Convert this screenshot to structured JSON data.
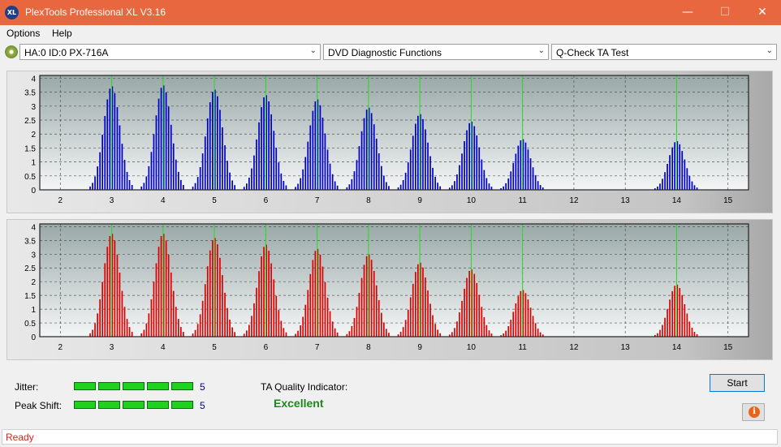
{
  "window": {
    "app_icon_text": "XL",
    "title": "PlexTools Professional XL V3.16",
    "minimize_icon": "minimize-icon",
    "maximize_icon": "maximize-icon",
    "close_icon": "close-icon"
  },
  "menu": {
    "items": [
      "Options",
      "Help"
    ]
  },
  "toolbar": {
    "drive": "HA:0 ID:0  PX-716A",
    "function": "DVD Diagnostic Functions",
    "test": "Q-Check TA Test"
  },
  "charts": {
    "x_ticks": [
      "2",
      "3",
      "4",
      "5",
      "6",
      "7",
      "8",
      "9",
      "10",
      "11",
      "12",
      "13",
      "14",
      "15"
    ],
    "y_ticks": [
      "0",
      "0.5",
      "1",
      "1.5",
      "2",
      "2.5",
      "3",
      "3.5",
      "4"
    ]
  },
  "chart_data": [
    {
      "type": "bar",
      "name": "top",
      "color": "#0000cc",
      "xlim": [
        1.6,
        15.4
      ],
      "ylim": [
        0,
        4.1
      ],
      "x_ticks": [
        2,
        3,
        4,
        5,
        6,
        7,
        8,
        9,
        10,
        11,
        12,
        13,
        14,
        15
      ],
      "y_ticks": [
        0,
        0.5,
        1,
        1.5,
        2,
        2.5,
        3,
        3.5,
        4
      ],
      "green_markers": [
        3,
        4,
        5,
        6,
        7,
        8,
        9,
        10,
        11,
        14
      ],
      "peaks": [
        {
          "center": 3,
          "height": 3.72
        },
        {
          "center": 4,
          "height": 3.75
        },
        {
          "center": 5,
          "height": 3.6
        },
        {
          "center": 6,
          "height": 3.4
        },
        {
          "center": 7,
          "height": 3.25
        },
        {
          "center": 8,
          "height": 2.95
        },
        {
          "center": 9,
          "height": 2.72
        },
        {
          "center": 10,
          "height": 2.45
        },
        {
          "center": 11,
          "height": 1.82
        },
        {
          "center": 14,
          "height": 1.75
        }
      ]
    },
    {
      "type": "bar",
      "name": "bottom",
      "color": "#dd0000",
      "xlim": [
        1.6,
        15.4
      ],
      "ylim": [
        0,
        4.1
      ],
      "x_ticks": [
        2,
        3,
        4,
        5,
        6,
        7,
        8,
        9,
        10,
        11,
        12,
        13,
        14,
        15
      ],
      "y_ticks": [
        0,
        0.5,
        1,
        1.5,
        2,
        2.5,
        3,
        3.5,
        4
      ],
      "green_markers": [
        3,
        4,
        5,
        6,
        7,
        8,
        9,
        10,
        11,
        14
      ],
      "peaks": [
        {
          "center": 3,
          "height": 3.75
        },
        {
          "center": 4,
          "height": 3.75
        },
        {
          "center": 5,
          "height": 3.6
        },
        {
          "center": 6,
          "height": 3.35
        },
        {
          "center": 7,
          "height": 3.2
        },
        {
          "center": 8,
          "height": 3.0
        },
        {
          "center": 9,
          "height": 2.7
        },
        {
          "center": 10,
          "height": 2.45
        },
        {
          "center": 11,
          "height": 1.7
        },
        {
          "center": 14,
          "height": 1.9
        }
      ]
    }
  ],
  "results": {
    "jitter_label": "Jitter:",
    "jitter_value": "5",
    "jitter_level": 5,
    "peak_shift_label": "Peak Shift:",
    "peak_shift_value": "5",
    "peak_shift_level": 5,
    "ta_label": "TA Quality Indicator:",
    "ta_value": "Excellent",
    "start_label": "Start",
    "info_icon_text": "i"
  },
  "status": {
    "text": "Ready"
  }
}
